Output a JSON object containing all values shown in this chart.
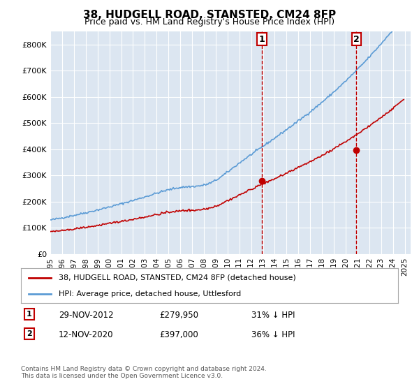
{
  "title": "38, HUDGELL ROAD, STANSTED, CM24 8FP",
  "subtitle": "Price paid vs. HM Land Registry's House Price Index (HPI)",
  "legend_line1": "38, HUDGELL ROAD, STANSTED, CM24 8FP (detached house)",
  "legend_line2": "HPI: Average price, detached house, Uttlesford",
  "annotation1_label": "1",
  "annotation1_date": "29-NOV-2012",
  "annotation1_price": "£279,950",
  "annotation1_hpi": "31% ↓ HPI",
  "annotation2_label": "2",
  "annotation2_date": "12-NOV-2020",
  "annotation2_price": "£397,000",
  "annotation2_hpi": "36% ↓ HPI",
  "footnote": "Contains HM Land Registry data © Crown copyright and database right 2024.\nThis data is licensed under the Open Government Licence v3.0.",
  "hpi_color": "#5b9bd5",
  "price_color": "#c00000",
  "annotation_box_color": "#c00000",
  "background_color": "#ffffff",
  "plot_bg_color": "#dce6f1",
  "grid_color": "#ffffff",
  "ylim": [
    0,
    850000
  ],
  "yticks": [
    0,
    100000,
    200000,
    300000,
    400000,
    500000,
    600000,
    700000,
    800000
  ],
  "start_year": 1995,
  "end_year": 2025
}
